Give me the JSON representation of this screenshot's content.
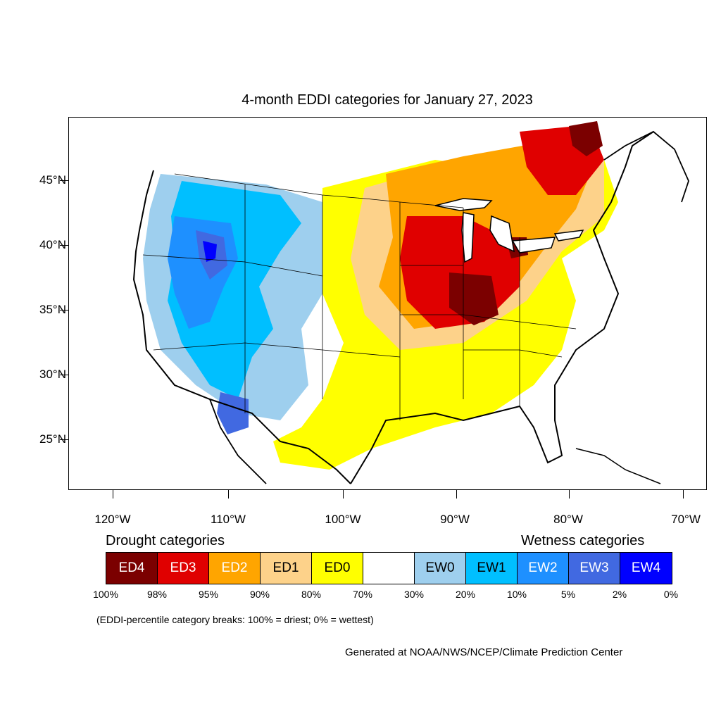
{
  "title": "4-month EDDI categories for January 27, 2023",
  "lat_labels": [
    "45°N",
    "40°N",
    "35°N",
    "30°N",
    "25°N"
  ],
  "lon_labels": [
    "120°W",
    "110°W",
    "100°W",
    "90°W",
    "80°W",
    "70°W"
  ],
  "legend": {
    "drought_heading": "Drought categories",
    "wetness_heading": "Wetness categories",
    "categories": [
      {
        "label": "ED4",
        "color": "#7b0000",
        "text_color": "#ffffff"
      },
      {
        "label": "ED3",
        "color": "#e00000",
        "text_color": "#ffffff"
      },
      {
        "label": "ED2",
        "color": "#ffa500",
        "text_color": "#ffffff"
      },
      {
        "label": "ED1",
        "color": "#fdd28a",
        "text_color": "#000000"
      },
      {
        "label": "ED0",
        "color": "#ffff00",
        "text_color": "#000000"
      },
      {
        "label": "",
        "color": "#ffffff",
        "text_color": "#000000"
      },
      {
        "label": "EW0",
        "color": "#9ecfee",
        "text_color": "#000000"
      },
      {
        "label": "EW1",
        "color": "#00bfff",
        "text_color": "#000000"
      },
      {
        "label": "EW2",
        "color": "#1e90ff",
        "text_color": "#ffffff"
      },
      {
        "label": "EW3",
        "color": "#4169e1",
        "text_color": "#ffffff"
      },
      {
        "label": "EW4",
        "color": "#0000ff",
        "text_color": "#ffffff"
      }
    ],
    "percentiles": [
      "100%",
      "98%",
      "95%",
      "90%",
      "80%",
      "70%",
      "30%",
      "20%",
      "10%",
      "5%",
      "2%",
      "0%"
    ]
  },
  "note": "(EDDI-percentile category breaks: 100% = driest; 0% = wettest)",
  "credit": "Generated at NOAA/NWS/NCEP/Climate Prediction Center"
}
